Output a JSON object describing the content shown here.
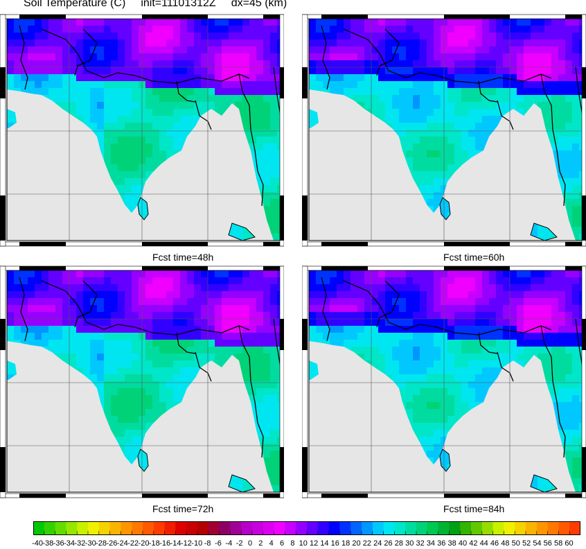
{
  "title": {
    "field": "Soil Temperature (C)",
    "init": "init=11101312Z",
    "dx": "dx=45 (km)"
  },
  "panels": [
    {
      "label": "Fcst time=48h",
      "region": "top-left",
      "style": "night"
    },
    {
      "label": "Fcst time=60h",
      "region": "top-right",
      "style": "day"
    },
    {
      "label": "Fcst time=72h",
      "region": "bottom-left",
      "style": "night"
    },
    {
      "label": "Fcst time=84h",
      "region": "bottom-right",
      "style": "day"
    }
  ],
  "colorbar": {
    "min": -40,
    "max": 60,
    "step": 2,
    "tick_labels": [
      "-40",
      "-38",
      "-36",
      "-34",
      "-32",
      "-30",
      "-28",
      "-26",
      "-24",
      "-22",
      "-20",
      "-18",
      "-16",
      "-14",
      "-12",
      "-10",
      "-8",
      "-6",
      "-4",
      "-2",
      "0",
      "2",
      "4",
      "6",
      "8",
      "10",
      "12",
      "14",
      "16",
      "18",
      "20",
      "22",
      "24",
      "26",
      "28",
      "30",
      "32",
      "34",
      "36",
      "38",
      "40",
      "42",
      "44",
      "46",
      "48",
      "50",
      "52",
      "54",
      "56",
      "58",
      "60"
    ],
    "palette": [
      "#00c800",
      "#32d200",
      "#64dc00",
      "#96e600",
      "#c8f000",
      "#f0f000",
      "#f5d200",
      "#fab400",
      "#ff9600",
      "#ff7800",
      "#ff5a00",
      "#ff3c00",
      "#f01e00",
      "#dc0000",
      "#c80000",
      "#b40000",
      "#a00032",
      "#8c0064",
      "#a00096",
      "#b400c8",
      "#c800dc",
      "#dc00f0",
      "#f000ff",
      "#c800ff",
      "#9600ff",
      "#6400ff",
      "#3200ff",
      "#0000ff",
      "#0032ff",
      "#0064ff",
      "#0096ff",
      "#00c8ff",
      "#00e6f0",
      "#00e6c8",
      "#00dca0",
      "#00d278",
      "#00c850",
      "#00b432",
      "#00a014",
      "#32b400",
      "#64c800",
      "#96dc00",
      "#c8f000",
      "#f0f000",
      "#f5d200",
      "#fab400",
      "#ff9600",
      "#ff7800",
      "#ff5a00",
      "#ff3c00"
    ]
  },
  "colors": {
    "ocean": "#e6e6e6",
    "border": "#000000",
    "grid": "#555555"
  }
}
